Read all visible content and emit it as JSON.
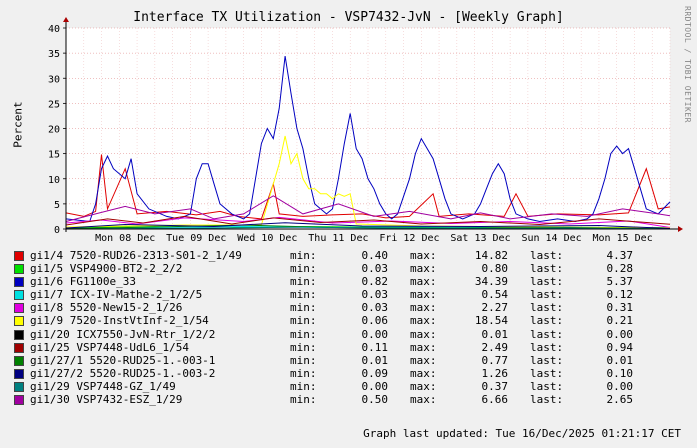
{
  "chart_data": {
    "type": "line",
    "title": "Interface TX Utilization - VSP7432-JvN - [Weekly Graph]",
    "ylabel": "Percent",
    "xlabel": "",
    "ylim": [
      0,
      40
    ],
    "yticks": [
      0,
      5,
      10,
      15,
      20,
      25,
      30,
      35,
      40
    ],
    "xticks": [
      "Mon 08 Dec",
      "Tue 09 Dec",
      "Wed 10 Dec",
      "Thu 11 Dec",
      "Fri 12 Dec",
      "Sat 13 Dec",
      "Sun 14 Dec",
      "Mon 15 Dec"
    ],
    "x_range_hours": [
      0,
      204
    ],
    "legend_headers": {
      "min": "min:",
      "max": "max:",
      "last": "last:"
    },
    "series": [
      {
        "name": "gi1/4 7520-RUD26-2313-S01-2_1/49",
        "color": "#e00000",
        "min": "0.40",
        "max": "14.82",
        "last": "4.37",
        "points": [
          [
            0,
            3.2
          ],
          [
            6,
            2.5
          ],
          [
            10,
            3.5
          ],
          [
            12,
            14.8
          ],
          [
            14,
            4
          ],
          [
            20,
            12
          ],
          [
            24,
            3
          ],
          [
            34,
            3.5
          ],
          [
            44,
            2.8
          ],
          [
            52,
            3.5
          ],
          [
            58,
            2.5
          ],
          [
            66,
            2
          ],
          [
            70,
            9
          ],
          [
            72,
            3
          ],
          [
            80,
            2.5
          ],
          [
            90,
            2.8
          ],
          [
            100,
            3
          ],
          [
            108,
            2.2
          ],
          [
            116,
            2.5
          ],
          [
            124,
            7
          ],
          [
            126,
            2.5
          ],
          [
            136,
            3
          ],
          [
            148,
            2.5
          ],
          [
            152,
            7
          ],
          [
            156,
            2.5
          ],
          [
            166,
            3
          ],
          [
            180,
            2.8
          ],
          [
            190,
            3.2
          ],
          [
            196,
            12
          ],
          [
            200,
            4
          ],
          [
            204,
            4.4
          ]
        ]
      },
      {
        "name": "gi1/5 VSP4900-BT2-2_2/2",
        "color": "#00e000",
        "min": "0.03",
        "max": "0.80",
        "last": "0.28",
        "points": [
          [
            0,
            0.2
          ],
          [
            20,
            0.5
          ],
          [
            44,
            0.8
          ],
          [
            60,
            0.3
          ],
          [
            80,
            0.5
          ],
          [
            100,
            0.4
          ],
          [
            130,
            0.3
          ],
          [
            160,
            0.4
          ],
          [
            180,
            0.3
          ],
          [
            204,
            0.28
          ]
        ]
      },
      {
        "name": "gi1/6 FG1100e_33",
        "color": "#0000c0",
        "min": "0.82",
        "max": "34.39",
        "last": "5.37",
        "points": [
          [
            0,
            2
          ],
          [
            8,
            1.5
          ],
          [
            10,
            5
          ],
          [
            12,
            12
          ],
          [
            14,
            14.5
          ],
          [
            16,
            12
          ],
          [
            20,
            10
          ],
          [
            22,
            14
          ],
          [
            24,
            7
          ],
          [
            28,
            4
          ],
          [
            34,
            2.5
          ],
          [
            38,
            2
          ],
          [
            42,
            3
          ],
          [
            44,
            10
          ],
          [
            46,
            13
          ],
          [
            48,
            13
          ],
          [
            50,
            9
          ],
          [
            52,
            5
          ],
          [
            56,
            3
          ],
          [
            60,
            2
          ],
          [
            62,
            3
          ],
          [
            64,
            10
          ],
          [
            66,
            17
          ],
          [
            68,
            20
          ],
          [
            70,
            18
          ],
          [
            72,
            24
          ],
          [
            74,
            34.4
          ],
          [
            76,
            27
          ],
          [
            78,
            20
          ],
          [
            80,
            16
          ],
          [
            82,
            10
          ],
          [
            84,
            5
          ],
          [
            86,
            4
          ],
          [
            88,
            3
          ],
          [
            90,
            4
          ],
          [
            92,
            10
          ],
          [
            94,
            17
          ],
          [
            96,
            23
          ],
          [
            98,
            16
          ],
          [
            100,
            14
          ],
          [
            102,
            10
          ],
          [
            104,
            8
          ],
          [
            106,
            5
          ],
          [
            108,
            3
          ],
          [
            110,
            2
          ],
          [
            112,
            3
          ],
          [
            116,
            10
          ],
          [
            118,
            15
          ],
          [
            120,
            18
          ],
          [
            122,
            16
          ],
          [
            124,
            14
          ],
          [
            126,
            10
          ],
          [
            128,
            6
          ],
          [
            130,
            3
          ],
          [
            134,
            2
          ],
          [
            138,
            3
          ],
          [
            140,
            5
          ],
          [
            142,
            8
          ],
          [
            144,
            11
          ],
          [
            146,
            13
          ],
          [
            148,
            11
          ],
          [
            150,
            6
          ],
          [
            152,
            3
          ],
          [
            156,
            2
          ],
          [
            160,
            1.5
          ],
          [
            166,
            2
          ],
          [
            172,
            1.5
          ],
          [
            176,
            2
          ],
          [
            178,
            3
          ],
          [
            180,
            6
          ],
          [
            182,
            10
          ],
          [
            184,
            15
          ],
          [
            186,
            16.5
          ],
          [
            188,
            15
          ],
          [
            190,
            16
          ],
          [
            192,
            12
          ],
          [
            194,
            8
          ],
          [
            196,
            4
          ],
          [
            200,
            3
          ],
          [
            204,
            5.4
          ]
        ]
      },
      {
        "name": "gi1/7 ICX-IV-Mathe-2_1/2/5",
        "color": "#00e0e0",
        "min": "0.03",
        "max": "0.54",
        "last": "0.12",
        "points": [
          [
            0,
            0.1
          ],
          [
            30,
            0.3
          ],
          [
            60,
            0.5
          ],
          [
            90,
            0.3
          ],
          [
            120,
            0.4
          ],
          [
            150,
            0.2
          ],
          [
            180,
            0.3
          ],
          [
            204,
            0.12
          ]
        ]
      },
      {
        "name": "gi1/8 5520-New15-2_1/26",
        "color": "#e000e0",
        "min": "0.03",
        "max": "2.27",
        "last": "0.31",
        "points": [
          [
            0,
            1.2
          ],
          [
            12,
            1.8
          ],
          [
            24,
            1
          ],
          [
            40,
            2.2
          ],
          [
            60,
            1.5
          ],
          [
            72,
            2.3
          ],
          [
            90,
            1.2
          ],
          [
            110,
            1.6
          ],
          [
            130,
            1.1
          ],
          [
            150,
            1.5
          ],
          [
            170,
            1
          ],
          [
            190,
            1.6
          ],
          [
            204,
            0.3
          ]
        ]
      },
      {
        "name": "gi1/9 7520-InstVtInf-2_1/54",
        "color": "#ffff00",
        "min": "0.06",
        "max": "18.54",
        "last": "0.21",
        "points": [
          [
            0,
            0.4
          ],
          [
            40,
            0.8
          ],
          [
            66,
            0.8
          ],
          [
            72,
            13
          ],
          [
            74,
            18.5
          ],
          [
            76,
            13
          ],
          [
            78,
            15
          ],
          [
            80,
            10
          ],
          [
            82,
            8
          ],
          [
            84,
            8
          ],
          [
            86,
            7
          ],
          [
            88,
            7
          ],
          [
            90,
            6
          ],
          [
            92,
            7
          ],
          [
            94,
            6.5
          ],
          [
            96,
            7
          ],
          [
            98,
            1
          ],
          [
            120,
            0.6
          ],
          [
            160,
            0.4
          ],
          [
            204,
            0.2
          ]
        ]
      },
      {
        "name": "gi1/20 ICX7550-JvN-Rtr_1/2/2",
        "color": "#000000",
        "min": "0.00",
        "max": "0.01",
        "last": "0.00",
        "points": [
          [
            0,
            0
          ],
          [
            204,
            0
          ]
        ]
      },
      {
        "name": "gi1/25 VSP7448-UdL6_1/54",
        "color": "#a00000",
        "min": "0.11",
        "max": "2.49",
        "last": "0.94",
        "points": [
          [
            0,
            0.8
          ],
          [
            14,
            2
          ],
          [
            26,
            1.2
          ],
          [
            40,
            2.5
          ],
          [
            56,
            1
          ],
          [
            70,
            2.2
          ],
          [
            86,
            1.3
          ],
          [
            104,
            1.8
          ],
          [
            120,
            1
          ],
          [
            140,
            1.5
          ],
          [
            160,
            0.9
          ],
          [
            180,
            2
          ],
          [
            204,
            0.94
          ]
        ]
      },
      {
        "name": "gi1/27/1 5520-RUD25-1.-003-1",
        "color": "#008000",
        "min": "0.01",
        "max": "0.77",
        "last": "0.01",
        "points": [
          [
            0,
            0.1
          ],
          [
            30,
            0.4
          ],
          [
            60,
            0.77
          ],
          [
            90,
            0.3
          ],
          [
            130,
            0.2
          ],
          [
            170,
            0.3
          ],
          [
            204,
            0.01
          ]
        ]
      },
      {
        "name": "gi1/27/2 5520-RUD25-1.-003-2",
        "color": "#000080",
        "min": "0.09",
        "max": "1.26",
        "last": "0.10",
        "points": [
          [
            0,
            0.2
          ],
          [
            20,
            0.9
          ],
          [
            50,
            0.5
          ],
          [
            74,
            1.26
          ],
          [
            100,
            0.6
          ],
          [
            140,
            0.5
          ],
          [
            180,
            0.7
          ],
          [
            204,
            0.1
          ]
        ]
      },
      {
        "name": "gi1/29 VSP7448-GZ_1/49",
        "color": "#008080",
        "min": "0.00",
        "max": "0.37",
        "last": "0.00",
        "points": [
          [
            0,
            0
          ],
          [
            50,
            0.2
          ],
          [
            80,
            0.37
          ],
          [
            120,
            0.1
          ],
          [
            170,
            0.2
          ],
          [
            204,
            0
          ]
        ]
      },
      {
        "name": "gi1/30 VSP7432-ESZ_1/29",
        "color": "#a000a0",
        "min": "0.50",
        "max": "6.66",
        "last": "2.65",
        "points": [
          [
            0,
            1.5
          ],
          [
            10,
            3
          ],
          [
            20,
            4.5
          ],
          [
            30,
            3
          ],
          [
            42,
            4
          ],
          [
            50,
            2
          ],
          [
            60,
            3
          ],
          [
            70,
            6.6
          ],
          [
            80,
            3
          ],
          [
            92,
            5
          ],
          [
            104,
            2.5
          ],
          [
            116,
            3.5
          ],
          [
            130,
            2
          ],
          [
            140,
            3.2
          ],
          [
            150,
            2
          ],
          [
            164,
            3
          ],
          [
            176,
            2.5
          ],
          [
            188,
            4
          ],
          [
            200,
            3
          ],
          [
            204,
            2.65
          ]
        ]
      }
    ]
  },
  "footer": {
    "updated": "Graph last updated: Tue 16/Dec/2025 01:21:17 CET"
  },
  "watermark": "RRDTOOL / TOBI OETIKER"
}
